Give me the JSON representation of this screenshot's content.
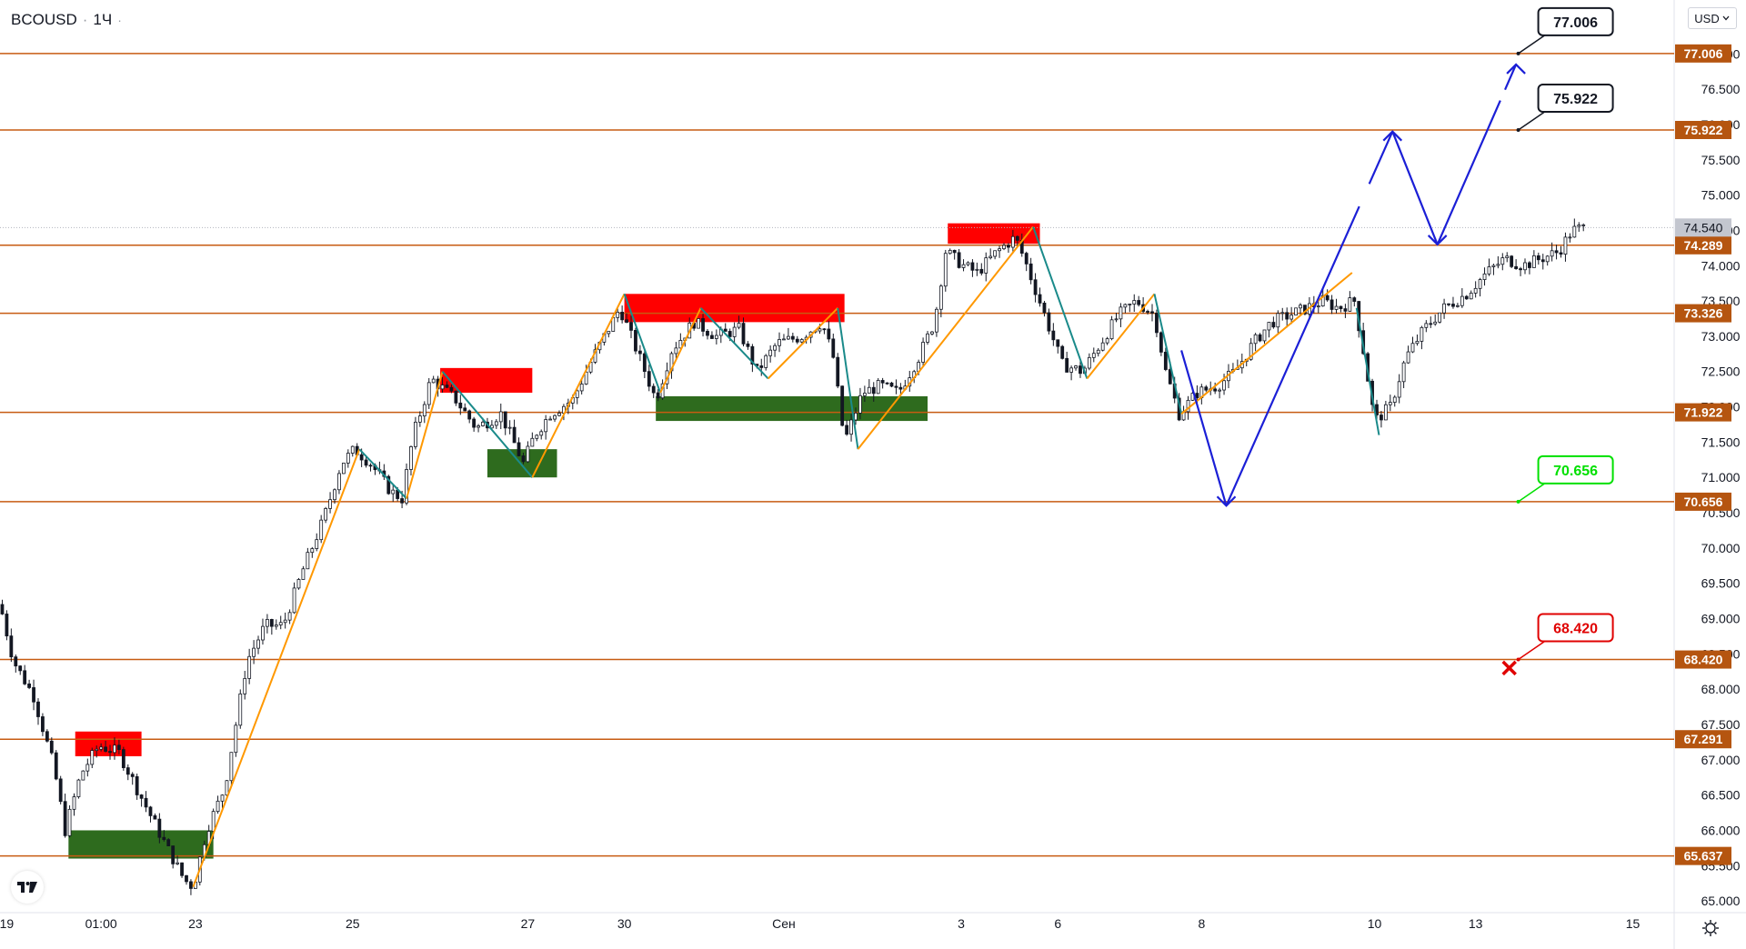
{
  "header": {
    "symbol": "BCOUSD",
    "separator": "·",
    "interval": "1Ч",
    "menu": "·"
  },
  "currency_button": {
    "label": "USD",
    "icon": "chevron-down-icon"
  },
  "logo": {
    "text": "TV",
    "icon": "tradingview-logo-icon"
  },
  "settings": {
    "icon": "gear-icon"
  },
  "colors": {
    "level_line": "#c75b12",
    "level_tag_bg": "#b55510",
    "current_tag_bg": "#c3c6cf",
    "candle": "#131722",
    "zigzag_up": "#ff9800",
    "zigzag_down": "#1a8a8a",
    "forecast": "#1b1fd6",
    "supply": "#ff0000",
    "demand": "#2e6b1e",
    "target_green": "#00e000",
    "stop_red": "#e00000"
  },
  "chart_data": {
    "type": "candlestick",
    "title": "BCOUSD · 1Ч",
    "ylim": [
      64.95,
      77.3
    ],
    "y_ticks": [
      "65.000",
      "65.500",
      "66.000",
      "66.500",
      "67.000",
      "67.500",
      "68.000",
      "68.500",
      "69.000",
      "69.500",
      "70.000",
      "70.500",
      "71.000",
      "71.500",
      "72.000",
      "72.500",
      "73.000",
      "73.500",
      "74.000",
      "74.500",
      "75.000",
      "75.500",
      "76.000",
      "76.500",
      "77.000"
    ],
    "x_ticks": [
      {
        "label": "19",
        "x": 0.3
      },
      {
        "label": "01:00",
        "x": 4.5
      },
      {
        "label": "23",
        "x": 8.7
      },
      {
        "label": "25",
        "x": 15.7
      },
      {
        "label": "27",
        "x": 23.5
      },
      {
        "label": "30",
        "x": 27.8
      },
      {
        "label": "Сен",
        "x": 34.9
      },
      {
        "label": "3",
        "x": 42.8
      },
      {
        "label": "6",
        "x": 47.1
      },
      {
        "label": "8",
        "x": 53.5
      },
      {
        "label": "10",
        "x": 61.2
      },
      {
        "label": "13",
        "x": 65.7
      },
      {
        "label": "15",
        "x": 72.7
      }
    ],
    "last_price": {
      "value": 74.54,
      "label": "74.540"
    },
    "levels": [
      {
        "value": 77.006,
        "label": "77.006"
      },
      {
        "value": 75.922,
        "label": "75.922"
      },
      {
        "value": 74.289,
        "label": "74.289"
      },
      {
        "value": 73.326,
        "label": "73.326"
      },
      {
        "value": 71.922,
        "label": "71.922"
      },
      {
        "value": 70.656,
        "label": "70.656"
      },
      {
        "value": 68.42,
        "label": "68.420"
      },
      {
        "value": 67.291,
        "label": "67.291"
      },
      {
        "value": 65.637,
        "label": "65.637"
      }
    ],
    "price_path": [
      [
        0,
        69.2
      ],
      [
        0.6,
        68.4
      ],
      [
        1.5,
        67.9
      ],
      [
        2.4,
        66.9
      ],
      [
        2.9,
        66.0
      ],
      [
        3.6,
        66.8
      ],
      [
        4.4,
        67.2
      ],
      [
        5.3,
        67.1
      ],
      [
        6.4,
        66.4
      ],
      [
        7.2,
        65.9
      ],
      [
        8.2,
        65.3
      ],
      [
        8.6,
        65.2
      ],
      [
        9.2,
        66.0
      ],
      [
        10.0,
        66.6
      ],
      [
        11.0,
        68.4
      ],
      [
        11.8,
        68.9
      ],
      [
        12.6,
        68.9
      ],
      [
        13.5,
        69.7
      ],
      [
        14.4,
        70.4
      ],
      [
        15.2,
        71.2
      ],
      [
        15.8,
        71.4
      ],
      [
        16.5,
        71.2
      ],
      [
        17.4,
        70.8
      ],
      [
        17.9,
        70.7
      ],
      [
        18.4,
        71.6
      ],
      [
        19.2,
        72.4
      ],
      [
        20.3,
        72.1
      ],
      [
        21.2,
        71.7
      ],
      [
        22.3,
        71.9
      ],
      [
        23.3,
        71.2
      ],
      [
        23.8,
        71.6
      ],
      [
        24.5,
        71.9
      ],
      [
        25.5,
        72.1
      ],
      [
        26.4,
        72.7
      ],
      [
        27.6,
        73.4
      ],
      [
        28.6,
        72.6
      ],
      [
        29.2,
        72.1
      ],
      [
        29.9,
        72.8
      ],
      [
        30.9,
        73.2
      ],
      [
        31.9,
        73.0
      ],
      [
        32.9,
        73.1
      ],
      [
        33.7,
        72.5
      ],
      [
        34.6,
        72.9
      ],
      [
        35.7,
        73.0
      ],
      [
        36.6,
        73.2
      ],
      [
        37.1,
        72.7
      ],
      [
        37.6,
        71.5
      ],
      [
        38.4,
        72.2
      ],
      [
        39.2,
        72.3
      ],
      [
        40.0,
        72.2
      ],
      [
        40.9,
        72.7
      ],
      [
        41.6,
        73.2
      ],
      [
        42.1,
        74.2
      ],
      [
        42.9,
        74.0
      ],
      [
        43.5,
        73.9
      ],
      [
        44.4,
        74.2
      ],
      [
        45.2,
        74.4
      ],
      [
        45.6,
        74.1
      ],
      [
        46.4,
        73.4
      ],
      [
        47.3,
        72.6
      ],
      [
        48.2,
        72.5
      ],
      [
        49.0,
        72.9
      ],
      [
        49.8,
        73.3
      ],
      [
        50.6,
        73.5
      ],
      [
        51.4,
        73.3
      ],
      [
        51.9,
        72.5
      ],
      [
        52.5,
        71.9
      ],
      [
        53.3,
        72.2
      ],
      [
        54.2,
        72.3
      ],
      [
        55.0,
        72.5
      ],
      [
        55.8,
        72.9
      ],
      [
        56.6,
        73.2
      ],
      [
        57.4,
        73.3
      ],
      [
        58.2,
        73.4
      ],
      [
        58.9,
        73.5
      ],
      [
        59.6,
        73.4
      ],
      [
        60.3,
        73.5
      ],
      [
        60.7,
        72.8
      ],
      [
        61.2,
        71.8
      ],
      [
        61.9,
        72.0
      ],
      [
        62.6,
        72.7
      ],
      [
        63.4,
        73.1
      ],
      [
        64.3,
        73.4
      ],
      [
        65.3,
        73.6
      ],
      [
        66.2,
        73.9
      ],
      [
        67.0,
        74.1
      ],
      [
        67.8,
        74.0
      ],
      [
        68.6,
        74.1
      ],
      [
        69.4,
        74.2
      ],
      [
        70.0,
        74.5
      ],
      [
        70.6,
        74.54
      ]
    ],
    "zones": [
      {
        "type": "supply",
        "x0": 3.35,
        "x1": 6.3,
        "y0": 67.05,
        "y1": 67.4
      },
      {
        "type": "demand",
        "x0": 3.05,
        "x1": 9.5,
        "y0": 65.6,
        "y1": 66.0
      },
      {
        "type": "supply",
        "x0": 19.6,
        "x1": 23.7,
        "y0": 72.2,
        "y1": 72.55
      },
      {
        "type": "demand",
        "x0": 21.7,
        "x1": 24.8,
        "y0": 71.0,
        "y1": 71.4
      },
      {
        "type": "supply",
        "x0": 27.8,
        "x1": 37.6,
        "y0": 73.2,
        "y1": 73.6
      },
      {
        "type": "demand",
        "x0": 29.2,
        "x1": 41.3,
        "y0": 71.8,
        "y1": 72.15
      },
      {
        "type": "supply",
        "x0": 42.2,
        "x1": 46.3,
        "y0": 74.31,
        "y1": 74.6
      }
    ],
    "zigzag": [
      [
        8.6,
        65.2
      ],
      [
        16.0,
        71.4
      ],
      [
        18.1,
        70.7
      ],
      [
        19.7,
        72.5
      ],
      [
        23.7,
        71.0
      ],
      [
        27.8,
        73.6
      ],
      [
        29.4,
        72.2
      ],
      [
        31.2,
        73.4
      ],
      [
        34.2,
        72.4
      ],
      [
        37.3,
        73.4
      ],
      [
        38.2,
        71.4
      ],
      [
        46.0,
        74.55
      ],
      [
        48.4,
        72.4
      ],
      [
        51.4,
        73.6
      ],
      [
        52.6,
        71.9
      ],
      [
        60.2,
        73.9
      ]
    ],
    "zigzag_extra": [
      [
        60.4,
        73.4
      ],
      [
        61.4,
        71.6
      ]
    ],
    "forecast_path": [
      [
        52.6,
        72.8
      ],
      [
        54.6,
        70.6
      ],
      [
        62.0,
        75.9
      ],
      [
        64.0,
        74.3
      ],
      [
        67.5,
        76.85
      ]
    ],
    "forecast_gaps": [
      1,
      3
    ],
    "callouts": [
      {
        "label": "77.006",
        "x": 67.6,
        "y": 77.006,
        "color": "black",
        "tag": "box"
      },
      {
        "label": "75.922",
        "x": 67.6,
        "y": 75.922,
        "color": "black",
        "tag": "box"
      },
      {
        "label": "70.656",
        "x": 67.6,
        "y": 70.656,
        "color": "green",
        "tag": "box"
      },
      {
        "label": "68.420",
        "x": 67.6,
        "y": 68.42,
        "color": "red",
        "tag": "box"
      }
    ],
    "stop_marker": {
      "x": 67.2,
      "y": 68.3
    }
  }
}
